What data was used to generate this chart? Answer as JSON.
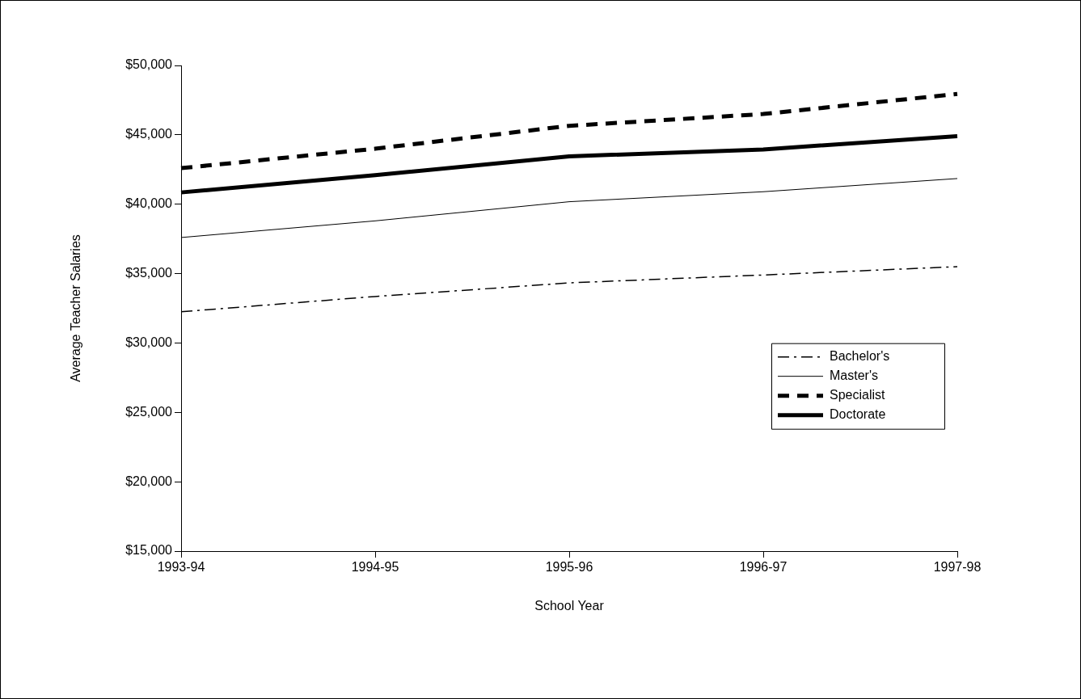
{
  "chart_data": {
    "type": "line",
    "xlabel": "School Year",
    "ylabel": "Average Teacher Salaries",
    "categories": [
      "1993-94",
      "1994-95",
      "1995-96",
      "1996-97",
      "1997-98"
    ],
    "series": [
      {
        "name": "Bachelor's",
        "color": "#000000",
        "line_style": "dashdot",
        "values": [
          32250,
          33350,
          34330,
          34900,
          35500
        ]
      },
      {
        "name": "Master's",
        "color": "#000000",
        "line_style": "solid",
        "values": [
          37600,
          38800,
          40180,
          40900,
          41850
        ]
      },
      {
        "name": "Specialist",
        "color": "#000000",
        "line_style": "dashed",
        "values": [
          42600,
          44000,
          45650,
          46500,
          47950
        ]
      },
      {
        "name": "Doctorate",
        "color": "#000000",
        "line_style": "solid",
        "values": [
          40850,
          42100,
          43450,
          43950,
          44900
        ]
      }
    ],
    "ylim": [
      15000,
      50000
    ],
    "yticks": [
      {
        "value": 15000,
        "label": "$15,000"
      },
      {
        "value": 20000,
        "label": "$20,000"
      },
      {
        "value": 25000,
        "label": "$25,000"
      },
      {
        "value": 30000,
        "label": "$30,000"
      },
      {
        "value": 35000,
        "label": "$35,000"
      },
      {
        "value": 40000,
        "label": "$40,000"
      },
      {
        "value": 45000,
        "label": "$45,000"
      },
      {
        "value": 50000,
        "label": "$50,000"
      }
    ],
    "grid": false,
    "legend": "right",
    "marker": "none"
  }
}
